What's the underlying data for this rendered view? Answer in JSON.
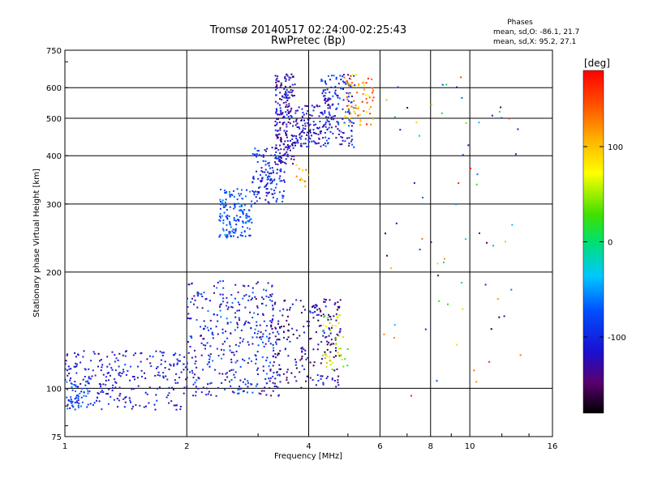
{
  "chart_data": {
    "type": "scatter",
    "title": "Tromsø 20140517 02:24:00-02:25:43",
    "subtitle": "RwPretec (Bp)",
    "xlabel": "Frequency [MHz]",
    "ylabel": "Stationary phase Virtual Height [km]",
    "x_scale": "log",
    "y_scale": "log",
    "xlim": [
      1,
      16
    ],
    "ylim": [
      75,
      750
    ],
    "x_ticks": [
      1,
      2,
      4,
      6,
      8,
      10,
      16
    ],
    "x_tick_labels": [
      "1",
      "2",
      "4",
      "6",
      "8",
      "10",
      "16"
    ],
    "y_ticks": [
      75,
      100,
      200,
      300,
      400,
      500,
      600,
      750
    ],
    "y_tick_labels": [
      "75",
      "100",
      "200",
      "300",
      "400",
      "500",
      "600",
      "750"
    ],
    "grid": true,
    "colorbar": {
      "label": "[deg]",
      "range": [
        -180,
        180
      ],
      "ticks": [
        100,
        0,
        -100
      ],
      "tick_labels": [
        "100",
        "0",
        "-100"
      ]
    },
    "stats": {
      "heading": "Phases",
      "line_o": "mean, sd,O: -86.1, 21.7",
      "line_x": "mean, sd,X:  95.2, 27.1"
    },
    "clusters": [
      {
        "x_range": [
          1.0,
          2.0
        ],
        "y_range": [
          88,
          125
        ],
        "phase_range": [
          -140,
          -80
        ],
        "count": 260
      },
      {
        "x_range": [
          1.0,
          1.15
        ],
        "y_range": [
          88,
          105
        ],
        "phase_range": [
          -85,
          -60
        ],
        "count": 40
      },
      {
        "x_range": [
          2.0,
          3.4
        ],
        "y_range": [
          95,
          190
        ],
        "phase_range": [
          -150,
          -55
        ],
        "count": 380
      },
      {
        "x_range": [
          3.2,
          4.8
        ],
        "y_range": [
          100,
          170
        ],
        "phase_range": [
          -170,
          -90
        ],
        "count": 220
      },
      {
        "x_range": [
          4.3,
          5.0
        ],
        "y_range": [
          110,
          155
        ],
        "phase_range": [
          10,
          120
        ],
        "count": 45
      },
      {
        "x_range": [
          2.4,
          2.9
        ],
        "y_range": [
          245,
          330
        ],
        "phase_range": [
          -100,
          -55
        ],
        "count": 150
      },
      {
        "x_range": [
          2.9,
          3.5
        ],
        "y_range": [
          300,
          420
        ],
        "phase_range": [
          -130,
          -65
        ],
        "count": 140
      },
      {
        "x_range": [
          3.3,
          3.7
        ],
        "y_range": [
          380,
          650
        ],
        "phase_range": [
          -160,
          -90
        ],
        "count": 200
      },
      {
        "x_range": [
          3.7,
          4.3
        ],
        "y_range": [
          420,
          540
        ],
        "phase_range": [
          -150,
          -80
        ],
        "count": 110
      },
      {
        "x_range": [
          4.3,
          5.2
        ],
        "y_range": [
          420,
          650
        ],
        "phase_range": [
          -150,
          -60
        ],
        "count": 170
      },
      {
        "x_range": [
          4.9,
          5.8
        ],
        "y_range": [
          480,
          650
        ],
        "phase_range": [
          70,
          170
        ],
        "count": 70
      },
      {
        "x_range": [
          3.7,
          4.0
        ],
        "y_range": [
          330,
          380
        ],
        "phase_range": [
          90,
          140
        ],
        "count": 12
      },
      {
        "x_range": [
          6.1,
          13.5
        ],
        "y_range": [
          85,
          650
        ],
        "phase_range": [
          -180,
          180
        ],
        "count": 70
      }
    ]
  }
}
